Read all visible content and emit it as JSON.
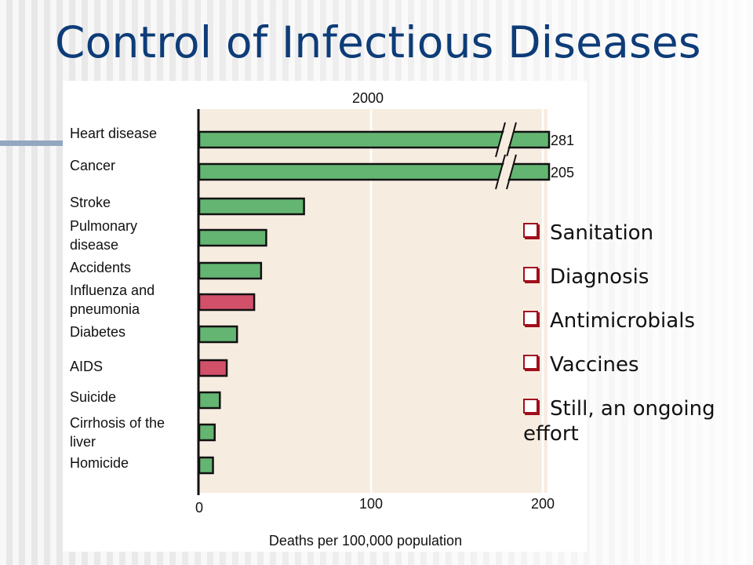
{
  "slide": {
    "title": "Control of Infectious Diseases",
    "accent_color": "#0d3c78",
    "bullets": [
      {
        "icon": "checkbox-square-icon",
        "text": "Sanitation"
      },
      {
        "icon": "checkbox-square-icon",
        "text": "Diagnosis"
      },
      {
        "icon": "checkbox-square-icon",
        "text": "Antimicrobials"
      },
      {
        "icon": "checkbox-square-icon",
        "text": "Vaccines"
      },
      {
        "icon": "checkbox-square-icon",
        "text": "Still, an ongoing effort"
      }
    ]
  },
  "chart_data": {
    "type": "bar",
    "orientation": "horizontal",
    "title": "2000",
    "xlabel": "Deaths per 100,000 population",
    "xlim": [
      0,
      200
    ],
    "xticks": [
      "0",
      "100",
      "200"
    ],
    "axis_break": true,
    "grid": "vertical lines at 100 and 200",
    "categories": [
      "Heart disease",
      "Cancer",
      "Stroke",
      "Pulmonary disease",
      "Accidents",
      "Influenza and pneumonia",
      "Diabetes",
      "AIDS",
      "Suicide",
      "Cirrhosis of the liver",
      "Homicide"
    ],
    "values": [
      281,
      205,
      61,
      39,
      36,
      32,
      22,
      16,
      12,
      9,
      8
    ],
    "data_labels": [
      "281",
      "205",
      "",
      "",
      "",
      "",
      "",
      "",
      "",
      "",
      ""
    ],
    "infectious": [
      false,
      false,
      false,
      false,
      false,
      true,
      false,
      true,
      false,
      false,
      false
    ],
    "colors": {
      "default": "#64b572",
      "infectious": "#d3506a",
      "background": "#f7ece0"
    }
  }
}
